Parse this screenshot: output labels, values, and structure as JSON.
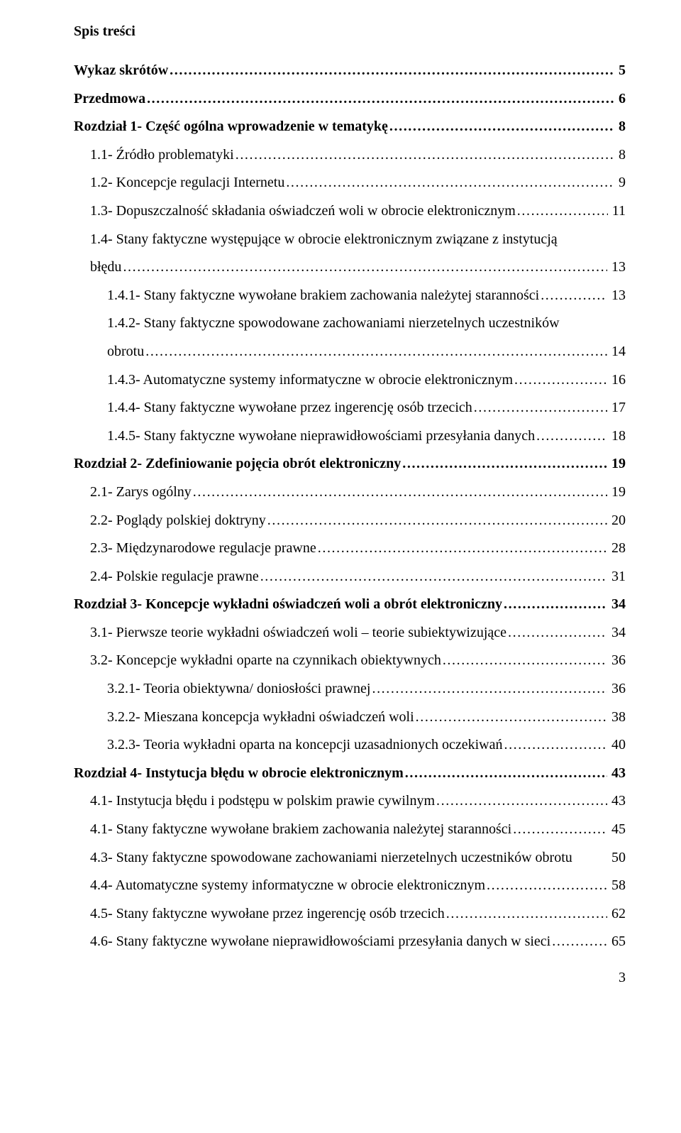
{
  "title": "Spis treści",
  "page_number": "3",
  "font": {
    "family": "Times New Roman",
    "size_pt": 15,
    "color": "#000000"
  },
  "background_color": "#ffffff",
  "entries": [
    {
      "label": "Wykaz skrótów",
      "page": "5",
      "indent": 0,
      "bold": true
    },
    {
      "label": "Przedmowa",
      "page": "6",
      "indent": 0,
      "bold": true
    },
    {
      "label": "Rozdział 1- Część ogólna wprowadzenie w tematykę",
      "page": "8",
      "indent": 0,
      "bold": true
    },
    {
      "label": "1.1- Źródło problematyki",
      "page": "8",
      "indent": 1,
      "bold": false
    },
    {
      "label": "1.2- Koncepcje regulacji Internetu",
      "page": "9",
      "indent": 1,
      "bold": false
    },
    {
      "label": "1.3- Dopuszczalność składania oświadczeń woli w obrocie elektronicznym",
      "page": "11",
      "indent": 1,
      "bold": false
    },
    {
      "label_line1": "1.4- Stany faktyczne występujące w obrocie elektronicznym związane z instytucją",
      "label_line2": "błędu",
      "page": "13",
      "indent": 1,
      "bold": false,
      "multiline": true
    },
    {
      "label": "1.4.1- Stany faktyczne wywołane brakiem zachowania należytej staranności",
      "page": "13",
      "indent": 2,
      "bold": false
    },
    {
      "label_line1": "1.4.2- Stany faktyczne spowodowane zachowaniami nierzetelnych uczestników",
      "label_line2": "obrotu",
      "page": "14",
      "indent": 2,
      "bold": false,
      "multiline": true
    },
    {
      "label": "1.4.3- Automatyczne systemy informatyczne w obrocie elektronicznym",
      "page": "16",
      "indent": 2,
      "bold": false
    },
    {
      "label": "1.4.4- Stany faktyczne wywołane przez ingerencję osób trzecich",
      "page": "17",
      "indent": 2,
      "bold": false
    },
    {
      "label": "1.4.5- Stany faktyczne wywołane nieprawidłowościami przesyłania danych",
      "page": "18",
      "indent": 2,
      "bold": false
    },
    {
      "label": "Rozdział 2- Zdefiniowanie pojęcia obrót elektroniczny",
      "page": "19",
      "indent": 0,
      "bold": true
    },
    {
      "label": "2.1- Zarys ogólny",
      "page": "19",
      "indent": 1,
      "bold": false
    },
    {
      "label": "2.2- Poglądy polskiej doktryny",
      "page": "20",
      "indent": 1,
      "bold": false
    },
    {
      "label": "2.3- Międzynarodowe regulacje prawne",
      "page": "28",
      "indent": 1,
      "bold": false
    },
    {
      "label": "2.4- Polskie regulacje prawne",
      "page": "31",
      "indent": 1,
      "bold": false
    },
    {
      "label": "Rozdział 3- Koncepcje wykładni oświadczeń woli a obrót elektroniczny",
      "page": "34",
      "indent": 0,
      "bold": true
    },
    {
      "label": "3.1- Pierwsze teorie wykładni oświadczeń woli – teorie subiektywizujące",
      "page": "34",
      "indent": 1,
      "bold": false
    },
    {
      "label": "3.2- Koncepcje wykładni oparte na czynnikach obiektywnych",
      "page": "36",
      "indent": 1,
      "bold": false
    },
    {
      "label": "3.2.1- Teoria obiektywna/ doniosłości prawnej",
      "page": "36",
      "indent": 2,
      "bold": false
    },
    {
      "label": "3.2.2- Mieszana koncepcja wykładni oświadczeń woli",
      "page": "38",
      "indent": 2,
      "bold": false
    },
    {
      "label": "3.2.3- Teoria wykładni oparta na koncepcji uzasadnionych oczekiwań",
      "page": "40",
      "indent": 2,
      "bold": false
    },
    {
      "label": "Rozdział 4- Instytucja błędu w obrocie elektronicznym",
      "page": "43",
      "indent": 0,
      "bold": true
    },
    {
      "label": "4.1- Instytucja błędu i podstępu w polskim prawie cywilnym",
      "page": "43",
      "indent": 1,
      "bold": false
    },
    {
      "label": "4.1- Stany faktyczne wywołane brakiem zachowania należytej staranności",
      "page": "45",
      "indent": 1,
      "bold": false
    },
    {
      "label": "4.3- Stany faktyczne spowodowane zachowaniami nierzetelnych uczestników obrotu",
      "page": "50",
      "indent": 1,
      "bold": false,
      "nodots": true
    },
    {
      "label": "4.4- Automatyczne systemy informatyczne w obrocie elektronicznym",
      "page": "58",
      "indent": 1,
      "bold": false
    },
    {
      "label": "4.5- Stany faktyczne wywołane przez ingerencję osób trzecich",
      "page": "62",
      "indent": 1,
      "bold": false
    },
    {
      "label": "4.6- Stany faktyczne wywołane nieprawidłowościami przesyłania danych w sieci",
      "page": "65",
      "indent": 1,
      "bold": false
    }
  ]
}
